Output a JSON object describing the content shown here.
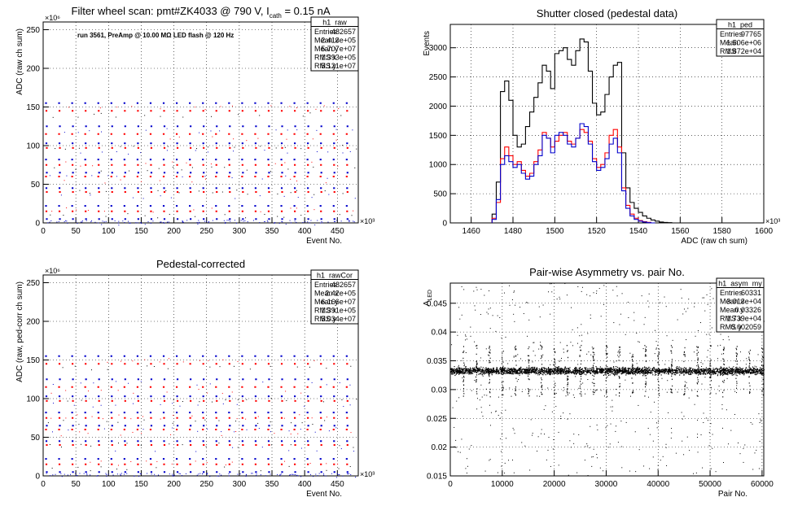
{
  "chart_data": [
    {
      "type": "scatter",
      "title": "Filter wheel scan: pmt#ZK4033 @   790 V, I",
      "title_sub": "cath",
      "title_tail": " = 0.15 nA",
      "annotation": "run 3561, PreAmp @ 10.00 MΩ LED flash @  120 Hz",
      "xlabel": "Event No.",
      "ylabel": "ADC (raw ch sum)",
      "x_exponent": "×10³",
      "y_exponent": "×10⁶",
      "xlim": [
        0,
        482
      ],
      "ylim": [
        0,
        260
      ],
      "xticks": [
        0,
        50,
        100,
        150,
        200,
        250,
        300,
        350,
        400,
        450
      ],
      "yticks": [
        0,
        50,
        100,
        150,
        200,
        250
      ],
      "grid": true,
      "stats": {
        "name": "h1_raw",
        "rows": [
          [
            "Entries",
            "482657"
          ],
          [
            "Mean x",
            "2.413e+05"
          ],
          [
            "Mean y",
            "5.707e+07"
          ],
          [
            "RMS x",
            "1.393e+05"
          ],
          [
            "RMS y",
            "5.121e+07"
          ]
        ]
      },
      "levels": [
        155,
        145,
        125,
        115,
        103,
        97,
        82,
        75,
        65,
        60,
        45,
        40,
        22,
        15,
        5
      ],
      "period": 20,
      "colors": [
        "#0000cc",
        "#ff0000",
        "#000000"
      ]
    },
    {
      "type": "histogram",
      "title": "Shutter closed (pedestal data)",
      "xlabel": "ADC (raw ch sum)",
      "ylabel": "Events",
      "x_exponent": "×10³",
      "xlim": [
        1450,
        1600
      ],
      "ylim": [
        0,
        3400
      ],
      "xticks": [
        1460,
        1480,
        1500,
        1520,
        1540,
        1560,
        1580,
        1600
      ],
      "yticks": [
        0,
        500,
        1000,
        1500,
        2000,
        2500,
        3000
      ],
      "grid": true,
      "stats": {
        "name": "h1_ped",
        "rows": [
          [
            "Entries",
            "97765"
          ],
          [
            "Mean",
            "1.506e+06"
          ],
          [
            "RMS",
            "1.872e+04"
          ]
        ]
      },
      "series": [
        {
          "color": "#000000",
          "x": [
            1470,
            1472,
            1474,
            1476,
            1478,
            1480,
            1482,
            1484,
            1486,
            1488,
            1490,
            1492,
            1494,
            1496,
            1498,
            1500,
            1502,
            1504,
            1506,
            1508,
            1510,
            1512,
            1514,
            1516,
            1518,
            1520,
            1522,
            1524,
            1526,
            1528,
            1530,
            1532,
            1534,
            1536,
            1538,
            1540,
            1542,
            1544,
            1546,
            1548,
            1550,
            1552,
            1554,
            1556
          ],
          "values": [
            150,
            700,
            2250,
            2430,
            2100,
            1500,
            1300,
            1350,
            1650,
            1900,
            2150,
            2400,
            2700,
            2600,
            2300,
            2900,
            2950,
            3000,
            2800,
            2700,
            2950,
            3150,
            3100,
            2600,
            2050,
            1850,
            1900,
            2200,
            2500,
            2700,
            2750,
            1200,
            600,
            350,
            250,
            180,
            120,
            80,
            50,
            30,
            15,
            8,
            5,
            0
          ]
        },
        {
          "color": "#ff0000",
          "x": [
            1470,
            1472,
            1474,
            1476,
            1478,
            1480,
            1482,
            1484,
            1486,
            1488,
            1490,
            1492,
            1494,
            1496,
            1498,
            1500,
            1502,
            1504,
            1506,
            1508,
            1510,
            1512,
            1514,
            1516,
            1518,
            1520,
            1522,
            1524,
            1526,
            1528,
            1530,
            1532,
            1534,
            1536,
            1538,
            1540,
            1542,
            1544,
            1546
          ],
          "values": [
            80,
            350,
            1100,
            1300,
            1150,
            1000,
            1050,
            900,
            800,
            850,
            1050,
            1250,
            1550,
            1450,
            1300,
            1400,
            1500,
            1550,
            1400,
            1350,
            1450,
            1600,
            1550,
            1400,
            1100,
            950,
            1000,
            1200,
            1500,
            1600,
            1300,
            600,
            300,
            150,
            80,
            40,
            20,
            10,
            0
          ]
        },
        {
          "color": "#0000cc",
          "x": [
            1470,
            1472,
            1474,
            1476,
            1478,
            1480,
            1482,
            1484,
            1486,
            1488,
            1490,
            1492,
            1494,
            1496,
            1498,
            1500,
            1502,
            1504,
            1506,
            1508,
            1510,
            1512,
            1514,
            1516,
            1518,
            1520,
            1522,
            1524,
            1526,
            1528,
            1530,
            1532,
            1534,
            1536,
            1538,
            1540,
            1542,
            1544,
            1546
          ],
          "values": [
            60,
            400,
            1000,
            1150,
            1050,
            950,
            1000,
            850,
            750,
            800,
            1000,
            1150,
            1500,
            1450,
            1200,
            1500,
            1550,
            1500,
            1350,
            1300,
            1450,
            1700,
            1650,
            1350,
            1050,
            900,
            950,
            1100,
            1350,
            1450,
            1200,
            550,
            250,
            120,
            60,
            30,
            15,
            5,
            0
          ]
        }
      ]
    },
    {
      "type": "scatter",
      "title": "Pedestal-corrected",
      "xlabel": "Event No.",
      "ylabel": "ADC (raw, ped-corr ch sum)",
      "x_exponent": "×10³",
      "y_exponent": "×10⁶",
      "xlim": [
        0,
        482
      ],
      "ylim": [
        0,
        260
      ],
      "xticks": [
        0,
        50,
        100,
        150,
        200,
        250,
        300,
        350,
        400,
        450
      ],
      "yticks": [
        0,
        50,
        100,
        150,
        200,
        250
      ],
      "grid": true,
      "stats": {
        "name": "h1_rawCor",
        "rows": [
          [
            "Entries",
            "482657"
          ],
          [
            "Mean x",
            "2.42e+05"
          ],
          [
            "Mean y",
            "6.166e+07"
          ],
          [
            "RMS x",
            "1.391e+05"
          ],
          [
            "RMS y",
            "5.034e+07"
          ]
        ]
      },
      "levels": [
        155,
        145,
        125,
        115,
        103,
        97,
        82,
        75,
        65,
        60,
        45,
        40,
        22,
        15,
        5
      ],
      "period": 20,
      "colors": [
        "#0000cc",
        "#ff0000",
        "#000000"
      ]
    },
    {
      "type": "scatter",
      "title": "Pair-wise Asymmetry vs. pair No.",
      "xlabel": "Pair No.",
      "ylabel": "A",
      "ylabel_sub": "LED",
      "xlim": [
        0,
        60331
      ],
      "ylim": [
        0.015,
        0.0485
      ],
      "xticks": [
        0,
        10000,
        20000,
        30000,
        40000,
        50000,
        60000
      ],
      "yticks": [
        0.015,
        0.02,
        0.025,
        0.03,
        0.035,
        0.04,
        0.045
      ],
      "grid": true,
      "stats": {
        "name": "h1_asym_my",
        "rows": [
          [
            "Entries",
            "60331"
          ],
          [
            "Mean x",
            "3.013e+04"
          ],
          [
            "Mean y",
            "0.03326"
          ],
          [
            "RMS x",
            "1.739e+04"
          ],
          [
            "RMS y",
            "0.002059"
          ]
        ]
      },
      "band_center": 0.0333,
      "band_width": 0.0006,
      "spike_period": 2500,
      "colors": [
        "#000000"
      ]
    }
  ]
}
